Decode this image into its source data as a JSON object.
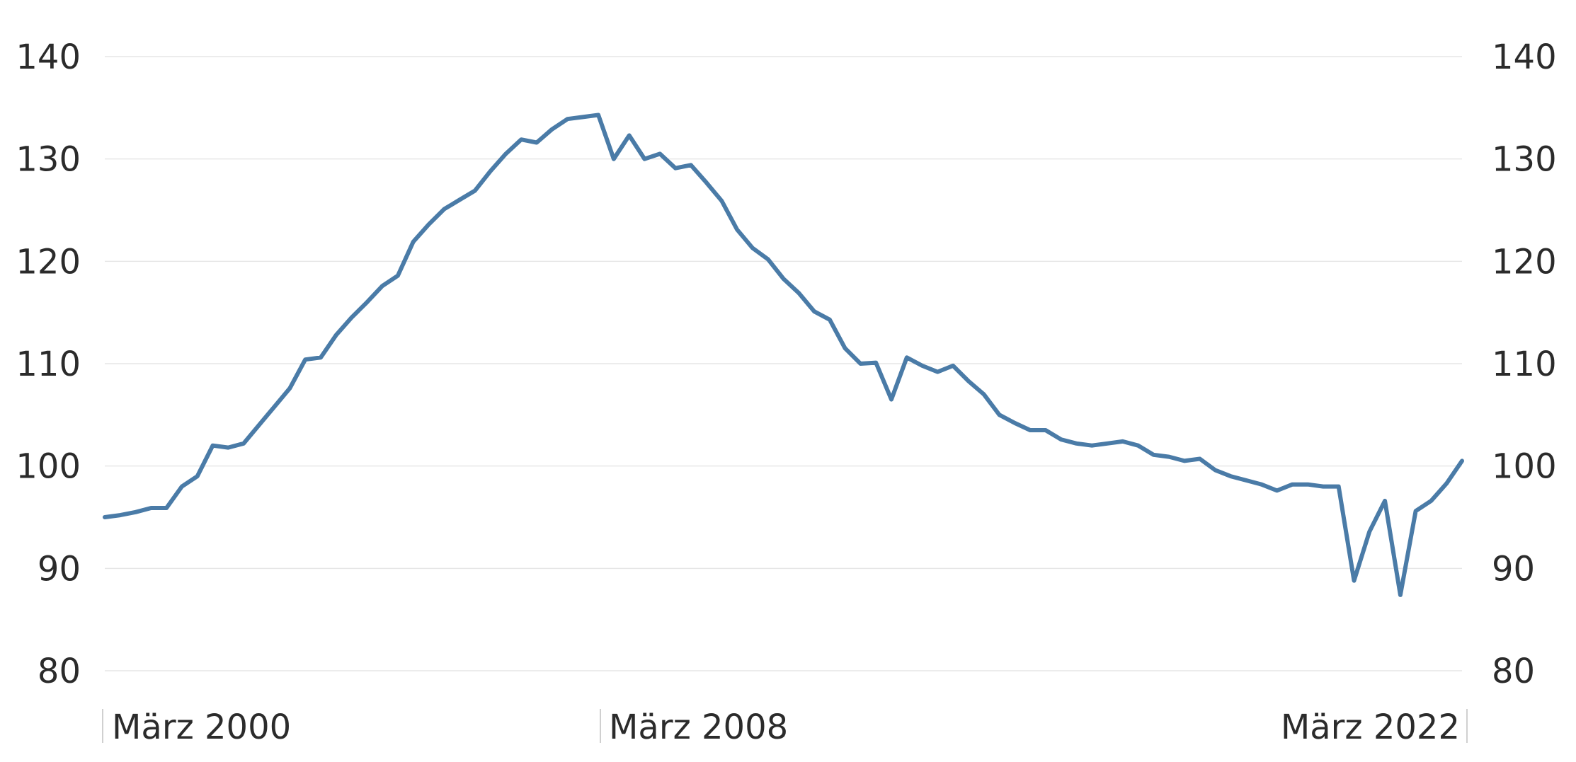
{
  "chart_data": {
    "type": "line",
    "title": "",
    "xlabel": "",
    "ylabel": "",
    "ylim": [
      80,
      140
    ],
    "y_ticks": [
      80,
      90,
      100,
      110,
      120,
      130,
      140
    ],
    "x_tick_labels": [
      "März 2000",
      "März 2008",
      "März 2022"
    ],
    "x_range": [
      "2000-03",
      "2022-03"
    ],
    "grid": true,
    "legend": "none",
    "line_color": "#4a7ba7",
    "series": [
      {
        "x": [
          "2000-03",
          "2000-06",
          "2000-09",
          "2000-12",
          "2001-03",
          "2001-06",
          "2001-09",
          "2001-12",
          "2002-03",
          "2002-06",
          "2002-09",
          "2002-12",
          "2003-03",
          "2003-06",
          "2003-09",
          "2003-12",
          "2004-03",
          "2004-06",
          "2004-09",
          "2004-12",
          "2005-03",
          "2005-06",
          "2005-09",
          "2005-12",
          "2006-03",
          "2006-06",
          "2006-09",
          "2006-12",
          "2007-03",
          "2007-06",
          "2007-09",
          "2007-12",
          "2008-03",
          "2008-06",
          "2008-09",
          "2008-12",
          "2009-03",
          "2009-06",
          "2009-09",
          "2009-12",
          "2010-03",
          "2010-06",
          "2010-09",
          "2010-12",
          "2011-03",
          "2011-06",
          "2011-09",
          "2011-12",
          "2012-03",
          "2012-06",
          "2012-09",
          "2012-12",
          "2013-03",
          "2013-06",
          "2013-09",
          "2013-12",
          "2014-03",
          "2014-06",
          "2014-09",
          "2014-12",
          "2015-03",
          "2015-06",
          "2015-09",
          "2015-12",
          "2016-03",
          "2016-06",
          "2016-09",
          "2016-12",
          "2017-03",
          "2017-06",
          "2017-09",
          "2017-12",
          "2018-03",
          "2018-06",
          "2018-09",
          "2018-12",
          "2019-03",
          "2019-06",
          "2019-09",
          "2019-12",
          "2020-03",
          "2020-06",
          "2020-09",
          "2020-12",
          "2021-03",
          "2021-06",
          "2021-09",
          "2021-12",
          "2022-03"
        ],
        "values": [
          95.0,
          95.2,
          95.5,
          95.9,
          95.9,
          98.0,
          99.0,
          102.0,
          101.8,
          102.2,
          104.0,
          105.8,
          107.6,
          110.4,
          110.6,
          112.8,
          114.5,
          116.0,
          117.6,
          118.6,
          121.9,
          123.6,
          125.1,
          126.0,
          126.9,
          128.8,
          130.5,
          131.9,
          131.6,
          132.9,
          133.9,
          134.1,
          134.3,
          130.0,
          132.3,
          130.0,
          130.5,
          129.1,
          129.4,
          127.7,
          125.9,
          123.1,
          121.3,
          120.2,
          118.3,
          116.9,
          115.1,
          114.3,
          111.5,
          110.0,
          110.1,
          106.5,
          110.6,
          109.8,
          109.2,
          109.8,
          108.3,
          107.0,
          105.0,
          104.2,
          103.5,
          103.5,
          102.6,
          102.2,
          102.0,
          102.2,
          102.4,
          102.0,
          101.1,
          100.9,
          100.5,
          100.7,
          99.6,
          99.0,
          98.6,
          98.2,
          97.6,
          98.2,
          98.2,
          98.0,
          98.0,
          88.8,
          93.6,
          96.6,
          87.4,
          95.6,
          96.6,
          98.3,
          100.5
        ]
      }
    ]
  }
}
